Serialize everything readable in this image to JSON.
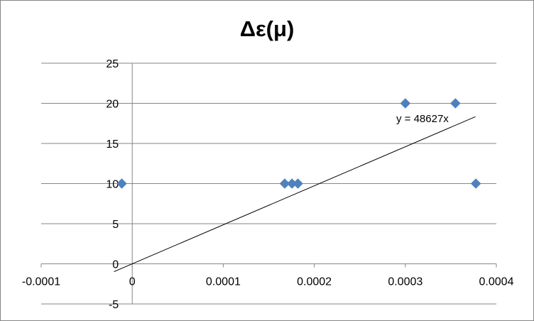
{
  "chart_data": {
    "type": "scatter",
    "title": "Δε(μ)",
    "xlabel": "",
    "ylabel": "",
    "xlim": [
      -0.0001,
      0.0004
    ],
    "ylim": [
      -5,
      25
    ],
    "x_ticks": [
      -0.0001,
      0,
      0.0001,
      0.0002,
      0.0003,
      0.0004
    ],
    "x_tick_labels": [
      "-0.0001",
      "0",
      "0.0001",
      "0.0002",
      "0.0003",
      "0.0004"
    ],
    "y_ticks": [
      -5,
      0,
      5,
      10,
      15,
      20,
      25
    ],
    "y_tick_labels": [
      "-5",
      "0",
      "5",
      "10",
      "15",
      "20",
      "25"
    ],
    "grid": true,
    "marker": "diamond",
    "series": [
      {
        "color": "#4f81bd",
        "x": [
          -1.15e-05,
          0.0001675,
          0.0001755,
          0.000182,
          0.0003,
          0.000355,
          0.0003775
        ],
        "y": [
          10,
          10,
          10,
          10,
          20,
          20,
          10
        ]
      }
    ],
    "trendline": {
      "slope": 48627,
      "intercept": 0,
      "x_range": [
        -2e-05,
        0.000377
      ],
      "equation": "y = 48627x",
      "color": "#000000"
    }
  }
}
